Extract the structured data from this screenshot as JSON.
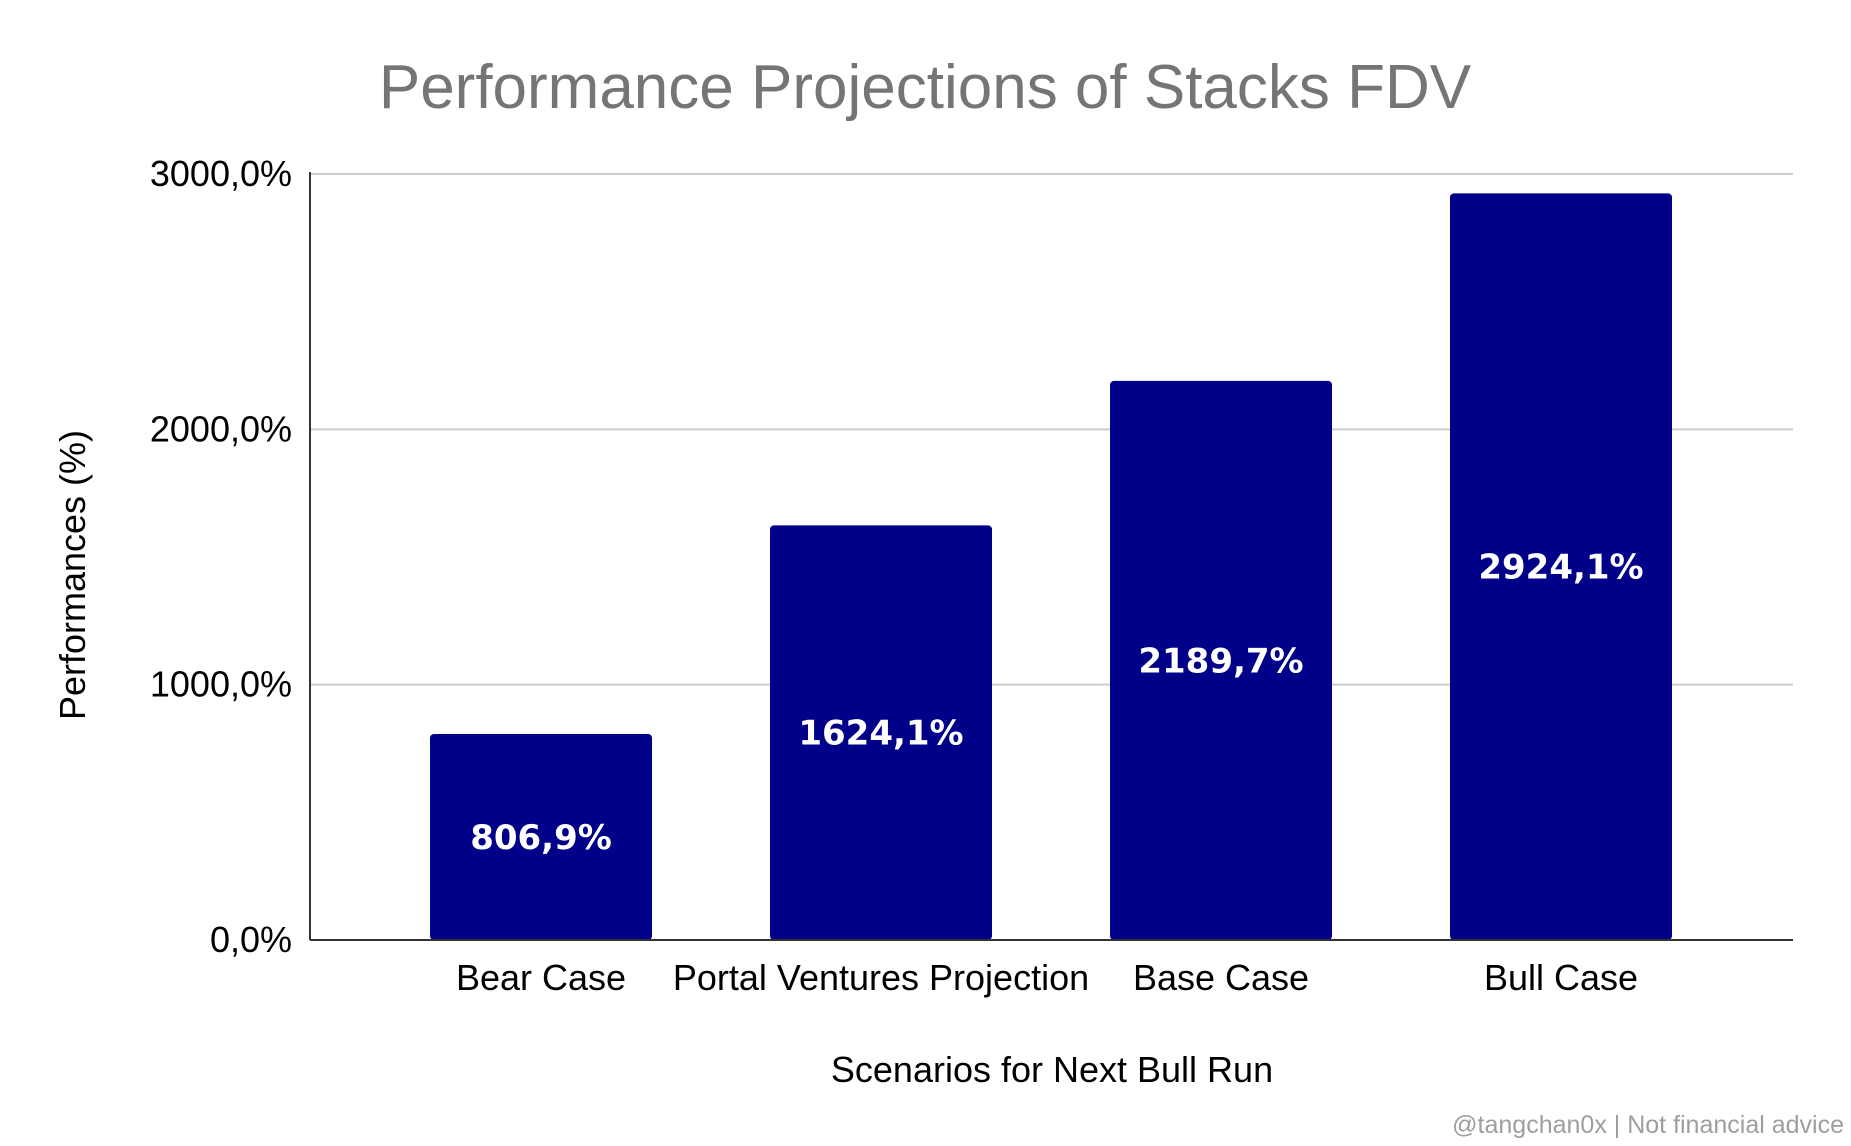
{
  "chart_data": {
    "type": "bar",
    "title": "Performance Projections of Stacks FDV",
    "xlabel": "Scenarios for Next Bull Run",
    "ylabel": "Performances (%)",
    "categories": [
      "Bear Case",
      "Portal Ventures Projection",
      "Base Case",
      "Bull Case"
    ],
    "values": [
      806.9,
      1624.1,
      2189.7,
      2924.1
    ],
    "data_labels": [
      "806,9%",
      "1624,1%",
      "2189,7%",
      "2924,1%"
    ],
    "ylim": [
      0,
      3000
    ],
    "yticks": [
      0,
      1000,
      2000,
      3000
    ],
    "ytick_labels": [
      "0,0%",
      "1000,0%",
      "2000,0%",
      "3000,0%"
    ],
    "grid": true,
    "legend": "none",
    "bar_color": "#000088"
  },
  "watermark": "@tangchan0x | Not financial advice"
}
